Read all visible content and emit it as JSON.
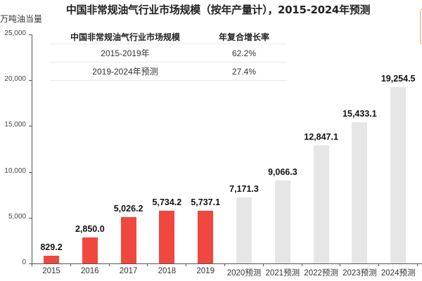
{
  "chart_data": {
    "type": "bar",
    "title": "中国非常规油气行业市场规模（按年产量计），2015-2024年预测",
    "ylabel": "万吨油当量",
    "xlabel": "",
    "ylim": [
      0,
      25000
    ],
    "yticks": [
      0,
      5000,
      10000,
      15000,
      20000,
      25000
    ],
    "ytick_labels": [
      "0",
      "5,000",
      "10,000",
      "15,000",
      "20,000",
      "25,000"
    ],
    "categories": [
      "2015",
      "2016",
      "2017",
      "2018",
      "2019",
      "2020预测",
      "2021预测",
      "2022预测",
      "2023预测",
      "2024预测"
    ],
    "values": [
      829.2,
      2850.0,
      5026.2,
      5734.2,
      5737.1,
      7171.3,
      9066.3,
      12847.1,
      15433.1,
      19254.5
    ],
    "value_labels": [
      "829.2",
      "2,850.0",
      "5,026.2",
      "5,734.2",
      "5,737.1",
      "7,171.3",
      "9,066.3",
      "12,847.1",
      "15,433.1",
      "19,254.5"
    ],
    "series_colors": {
      "actual": "#f0483e",
      "forecast": "#e6e6e6"
    },
    "bar_kind": [
      "actual",
      "actual",
      "actual",
      "actual",
      "actual",
      "forecast",
      "forecast",
      "forecast",
      "forecast",
      "forecast"
    ],
    "grid": false,
    "legend": null,
    "table": {
      "headers": [
        "中国非常规油气行业市场规模",
        "年复合增长率"
      ],
      "rows": [
        [
          "2015-2019年",
          "62.2%"
        ],
        [
          "2019-2024年预测",
          "27.4%"
        ]
      ]
    }
  },
  "title": "中国非常规油气行业市场规模（按年产量计），2015-2024年预测",
  "unit": "万吨油当量"
}
